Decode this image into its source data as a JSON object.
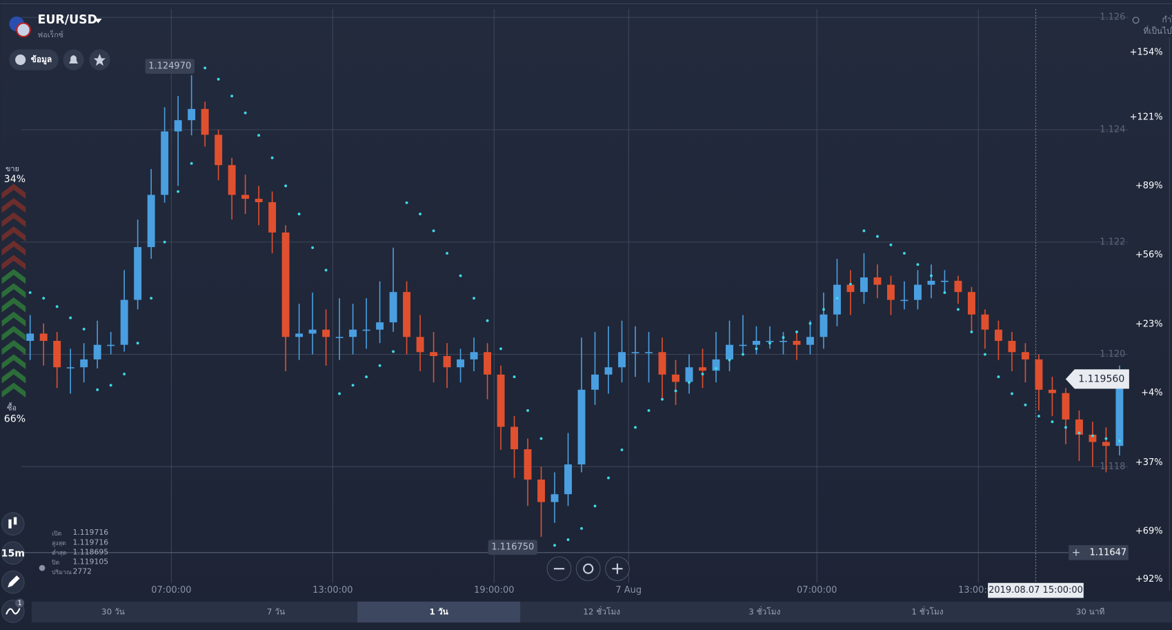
{
  "header": {
    "symbol": "EUR/USD",
    "market": "ฟอเร็กซ์",
    "info_button": "ข้อมูล"
  },
  "profit_header": [
    "กำไร",
    "ที่เป็นไปได้"
  ],
  "sentiment": {
    "sell_label": "ขาย",
    "sell_value": "34%",
    "buy_label": "ซื้อ",
    "buy_value": "66%"
  },
  "timeframe": "15m",
  "indicator_count": "1",
  "ohlc_panel": [
    [
      "เปิด",
      "1.119716"
    ],
    [
      "สูงสุด",
      "1.119716"
    ],
    [
      "ต่ำสุด",
      "1.118695"
    ],
    [
      "ปิด",
      "1.119105"
    ],
    [
      "ปริมาณ",
      "2772"
    ]
  ],
  "payouts": [
    "+154%",
    "+121%",
    "+89%",
    "+56%",
    "+23%",
    "+4%",
    "+37%",
    "+69%",
    "+92%"
  ],
  "periods": [
    "30 วัน",
    "7 วัน",
    "1 วัน",
    "12 ชั่วโมง",
    "3 ชั่วโมง",
    "1 ชั่วโมง",
    "30 นาที"
  ],
  "active_period": 2,
  "crosshair_time": "2019.08.07 15:00:00",
  "chart_data": {
    "type": "candlestick",
    "up_color": "#4a9fe0",
    "down_color": "#e0502f",
    "sar_color": "#3fd8e6",
    "grid": true,
    "xlim": [
      0.64,
      42.58
    ],
    "xticks": [
      {
        "value": 7,
        "label": "07:00:00"
      },
      {
        "value": 13,
        "label": "13:00:00"
      },
      {
        "value": 19,
        "label": "19:00:00"
      },
      {
        "value": 24,
        "label": "7 Aug"
      },
      {
        "value": 31,
        "label": "07:00:00"
      },
      {
        "value": 37,
        "label": "13:00:00"
      }
    ],
    "ylim": [
      1.11593,
      1.12631
    ],
    "yticks": [
      1.118,
      {
        "value": 1.12,
        "label": "1.120"
      },
      1.122,
      1.124,
      1.126
    ],
    "annotations": [
      {
        "value": 1.12497,
        "label": "1.124970"
      },
      {
        "value": 1.11675,
        "label": "1.116750"
      },
      {
        "value": 1.11956,
        "label": "1.119560"
      },
      {
        "value": 1.11647,
        "label": "1.11647"
      }
    ],
    "x": [
      1.75,
      2.25,
      2.75,
      3.25,
      3.75,
      4.25,
      4.75,
      5.25,
      5.75,
      6.25,
      6.75,
      7.25,
      7.75,
      8.25,
      8.75,
      9.25,
      9.75,
      10.25,
      10.75,
      11.25,
      11.75,
      12.25,
      12.75,
      13.25,
      13.75,
      14.25,
      14.75,
      15.25,
      15.75,
      16.25,
      16.75,
      17.25,
      17.75,
      18.25,
      18.75,
      19.25,
      19.75,
      20.25,
      20.75,
      21.25,
      21.75,
      22.25,
      22.75,
      23.25,
      23.75,
      24.25,
      24.75,
      25.25,
      25.75,
      26.25,
      26.75,
      27.25,
      27.75,
      28.25,
      28.75,
      29.25,
      29.75,
      30.25,
      30.75,
      31.25,
      31.75,
      32.25,
      32.75,
      33.25,
      33.75,
      34.25,
      34.75,
      35.25,
      35.75,
      36.25,
      36.75,
      37.25,
      37.75,
      38.25,
      38.75,
      39.25,
      39.75,
      40.25,
      40.75,
      41.25,
      41.75,
      42.25
    ],
    "candles": [
      [
        1.12024,
        1.1207,
        1.1199,
        1.12037
      ],
      [
        1.12037,
        1.12055,
        1.1198,
        1.12024
      ],
      [
        1.12024,
        1.1204,
        1.1194,
        1.11977
      ],
      [
        1.11977,
        1.1201,
        1.1193,
        1.11977
      ],
      [
        1.11977,
        1.1202,
        1.1195,
        1.11991
      ],
      [
        1.11991,
        1.1206,
        1.11975,
        1.12017
      ],
      [
        1.12017,
        1.1204,
        1.12,
        1.12017
      ],
      [
        1.12017,
        1.1215,
        1.12005,
        1.12097
      ],
      [
        1.12097,
        1.1224,
        1.1208,
        1.12191
      ],
      [
        1.12191,
        1.1233,
        1.1217,
        1.12284
      ],
      [
        1.12284,
        1.1244,
        1.1227,
        1.12397
      ],
      [
        1.12397,
        1.1246,
        1.123,
        1.12417
      ],
      [
        1.12417,
        1.12497,
        1.1239,
        1.12437
      ],
      [
        1.12437,
        1.1245,
        1.1237,
        1.12391
      ],
      [
        1.12391,
        1.124,
        1.1231,
        1.12337
      ],
      [
        1.12337,
        1.1235,
        1.1224,
        1.12284
      ],
      [
        1.12284,
        1.1232,
        1.1225,
        1.12277
      ],
      [
        1.12277,
        1.123,
        1.1223,
        1.12271
      ],
      [
        1.12271,
        1.1229,
        1.1218,
        1.12217
      ],
      [
        1.12217,
        1.1223,
        1.1197,
        1.12031
      ],
      [
        1.12031,
        1.1209,
        1.1199,
        1.12037
      ],
      [
        1.12037,
        1.1211,
        1.12,
        1.12044
      ],
      [
        1.12044,
        1.1208,
        1.1198,
        1.12031
      ],
      [
        1.12031,
        1.121,
        1.1199,
        1.12031
      ],
      [
        1.12031,
        1.1209,
        1.12,
        1.12044
      ],
      [
        1.12044,
        1.121,
        1.1201,
        1.12044
      ],
      [
        1.12044,
        1.1213,
        1.1202,
        1.12057
      ],
      [
        1.12057,
        1.1219,
        1.1204,
        1.12111
      ],
      [
        1.12111,
        1.1213,
        1.12,
        1.12031
      ],
      [
        1.12031,
        1.1207,
        1.1197,
        1.12004
      ],
      [
        1.12004,
        1.1204,
        1.1195,
        1.11997
      ],
      [
        1.11997,
        1.1202,
        1.1194,
        1.11977
      ],
      [
        1.11977,
        1.1201,
        1.1195,
        1.11991
      ],
      [
        1.11991,
        1.1203,
        1.1197,
        1.12004
      ],
      [
        1.12004,
        1.1202,
        1.1192,
        1.11964
      ],
      [
        1.11964,
        1.1198,
        1.1183,
        1.11871
      ],
      [
        1.11871,
        1.1189,
        1.1178,
        1.11831
      ],
      [
        1.11831,
        1.1185,
        1.1173,
        1.11777
      ],
      [
        1.11777,
        1.118,
        1.11675,
        1.11737
      ],
      [
        1.11737,
        1.1179,
        1.117,
        1.11751
      ],
      [
        1.11751,
        1.1186,
        1.1173,
        1.11804
      ],
      [
        1.11804,
        1.1203,
        1.1179,
        1.11937
      ],
      [
        1.11937,
        1.1204,
        1.1191,
        1.11964
      ],
      [
        1.11964,
        1.1205,
        1.1193,
        1.11977
      ],
      [
        1.11977,
        1.1206,
        1.1195,
        1.12004
      ],
      [
        1.12004,
        1.1205,
        1.1196,
        1.12004
      ],
      [
        1.12004,
        1.1204,
        1.1195,
        1.12004
      ],
      [
        1.12004,
        1.1203,
        1.1192,
        1.11964
      ],
      [
        1.11964,
        1.1199,
        1.1191,
        1.11951
      ],
      [
        1.11951,
        1.12,
        1.1193,
        1.11977
      ],
      [
        1.11977,
        1.1201,
        1.1194,
        1.11971
      ],
      [
        1.11971,
        1.1204,
        1.1195,
        1.11991
      ],
      [
        1.11991,
        1.1206,
        1.1197,
        1.12017
      ],
      [
        1.12017,
        1.1207,
        1.12,
        1.12017
      ],
      [
        1.12017,
        1.1205,
        1.12,
        1.12024
      ],
      [
        1.12024,
        1.1205,
        1.1201,
        1.12024
      ],
      [
        1.12024,
        1.1204,
        1.12,
        1.12024
      ],
      [
        1.12024,
        1.1204,
        1.1199,
        1.12017
      ],
      [
        1.12017,
        1.1206,
        1.12,
        1.12031
      ],
      [
        1.12031,
        1.1211,
        1.1201,
        1.12071
      ],
      [
        1.12071,
        1.1217,
        1.1205,
        1.12124
      ],
      [
        1.12124,
        1.1215,
        1.1207,
        1.12111
      ],
      [
        1.12111,
        1.1218,
        1.1209,
        1.12137
      ],
      [
        1.12137,
        1.1216,
        1.121,
        1.12124
      ],
      [
        1.12124,
        1.1214,
        1.1207,
        1.12097
      ],
      [
        1.12097,
        1.1213,
        1.1208,
        1.12097
      ],
      [
        1.12097,
        1.1215,
        1.1208,
        1.12124
      ],
      [
        1.12124,
        1.1216,
        1.121,
        1.12131
      ],
      [
        1.12131,
        1.1215,
        1.1211,
        1.12131
      ],
      [
        1.12131,
        1.1214,
        1.1209,
        1.12111
      ],
      [
        1.12111,
        1.1212,
        1.1204,
        1.12071
      ],
      [
        1.12071,
        1.1208,
        1.1201,
        1.12044
      ],
      [
        1.12044,
        1.1206,
        1.1199,
        1.12024
      ],
      [
        1.12024,
        1.1204,
        1.1197,
        1.12004
      ],
      [
        1.12004,
        1.1202,
        1.1195,
        1.11991
      ],
      [
        1.11991,
        1.12,
        1.119,
        1.11937
      ],
      [
        1.11937,
        1.1196,
        1.1189,
        1.11931
      ],
      [
        1.11931,
        1.1194,
        1.1184,
        1.11884
      ],
      [
        1.11884,
        1.119,
        1.1181,
        1.11857
      ],
      [
        1.11857,
        1.1188,
        1.118,
        1.11844
      ],
      [
        1.11844,
        1.1187,
        1.1179,
        1.11837
      ],
      [
        1.11837,
        1.1198,
        1.1182,
        1.11956
      ]
    ],
    "sar": [
      1.1211,
      1.121,
      1.12085,
      1.12065,
      1.12045,
      1.11937,
      1.11945,
      1.11965,
      1.1202,
      1.121,
      1.122,
      1.1229,
      1.1234,
      1.1251,
      1.1249,
      1.1246,
      1.1243,
      1.1239,
      1.1235,
      1.123,
      1.1225,
      1.1219,
      1.1215,
      1.1193,
      1.11945,
      1.1196,
      1.1198,
      1.12005,
      1.1227,
      1.1225,
      1.1222,
      1.1218,
      1.1214,
      1.121,
      1.1206,
      1.1201,
      1.1196,
      1.119,
      1.1185,
      1.1166,
      1.1167,
      1.1169,
      1.1173,
      1.1178,
      1.1183,
      1.1187,
      1.119,
      1.1192,
      1.11935,
      1.1195,
      1.11965,
      1.11975,
      1.1199,
      1.12,
      1.1201,
      1.1202,
      1.1203,
      1.1204,
      1.12055,
      1.1208,
      1.121,
      1.12125,
      1.1222,
      1.1221,
      1.12195,
      1.1218,
      1.1216,
      1.1214,
      1.1211,
      1.1208,
      1.1204,
      1.12,
      1.1196,
      1.1193,
      1.1191,
      1.1189,
      1.1188,
      1.1187,
      1.1186,
      1.11855,
      1.1185,
      1.11846
    ]
  }
}
